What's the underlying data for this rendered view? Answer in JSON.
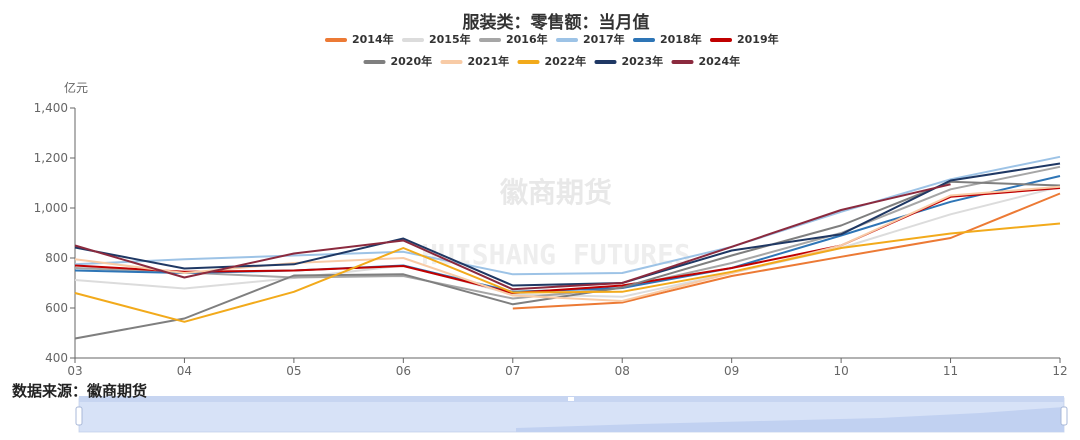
{
  "chart_data": {
    "type": "line",
    "title": "服装类：零售额：当月值",
    "ylabel": "亿元",
    "ylim": [
      400,
      1400
    ],
    "yticks": [
      "400",
      "600",
      "800",
      "1,000",
      "1,200",
      "1,400"
    ],
    "categories": [
      "03",
      "04",
      "05",
      "06",
      "07",
      "08",
      "09",
      "10",
      "11",
      "12"
    ],
    "watermark_cn": "徽商期货",
    "watermark_en": "HUISHANG FUTURES",
    "series": [
      {
        "name": "2014年",
        "color": "#ec7a35",
        "values": [
          null,
          null,
          null,
          null,
          598,
          622,
          728,
          805,
          880,
          1058
        ]
      },
      {
        "name": "2015年",
        "color": "#dcdcdc",
        "values": [
          712,
          678,
          720,
          770,
          655,
          645,
          740,
          840,
          975,
          1085
        ]
      },
      {
        "name": "2016年",
        "color": "#a6a6a6",
        "values": [
          760,
          742,
          722,
          728,
          638,
          680,
          780,
          900,
          1075,
          1165
        ]
      },
      {
        "name": "2017年",
        "color": "#9dc3e6",
        "values": [
          775,
          795,
          810,
          825,
          735,
          740,
          845,
          985,
          1115,
          1205
        ]
      },
      {
        "name": "2018年",
        "color": "#2e75b6",
        "values": [
          750,
          740,
          750,
          770,
          665,
          680,
          760,
          890,
          1025,
          1128
        ]
      },
      {
        "name": "2019年",
        "color": "#c00000",
        "values": [
          770,
          745,
          750,
          768,
          660,
          690,
          760,
          850,
          1045,
          1080
        ]
      },
      {
        "name": "2020年",
        "color": "#7f7f7f",
        "values": [
          478,
          558,
          730,
          735,
          615,
          682,
          810,
          930,
          1105,
          1090
        ]
      },
      {
        "name": "2021年",
        "color": "#f8cba6",
        "values": [
          795,
          740,
          780,
          800,
          650,
          628,
          740,
          850,
          1050,
          1085
        ]
      },
      {
        "name": "2022年",
        "color": "#f2aa1b",
        "values": [
          660,
          545,
          665,
          840,
          662,
          665,
          745,
          840,
          898,
          938
        ]
      },
      {
        "name": "2023年",
        "color": "#1f3864",
        "values": [
          842,
          758,
          775,
          878,
          690,
          700,
          830,
          895,
          1110,
          1178
        ]
      },
      {
        "name": "2024年",
        "color": "#8b2a3e",
        "values": [
          850,
          722,
          818,
          870,
          675,
          700,
          845,
          992,
          1095,
          null
        ]
      }
    ]
  },
  "source_text": "数据来源：徽商期货"
}
